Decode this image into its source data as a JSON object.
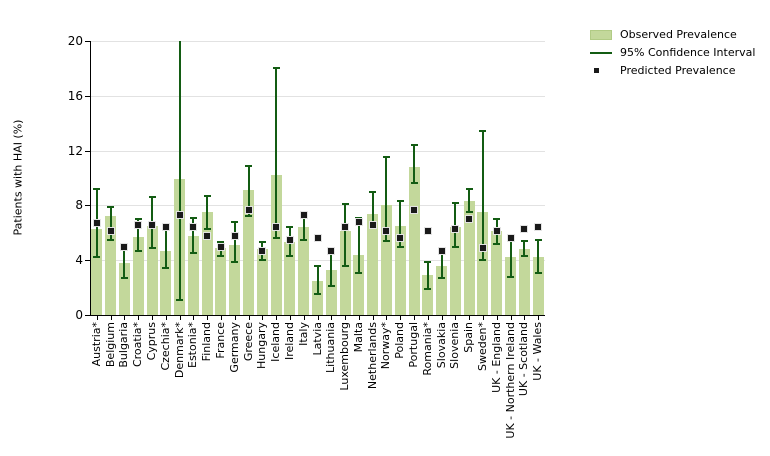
{
  "chart_data": {
    "type": "bar",
    "title": "",
    "xlabel": "",
    "ylabel": "Patients with HAI (%)",
    "ylim": [
      0,
      20
    ],
    "yticks": [
      0,
      4,
      8,
      12,
      16,
      20
    ],
    "grid": true,
    "legend_position": "top-right-outside",
    "categories": [
      "Austria*",
      "Belgium",
      "Bulgaria",
      "Croatia*",
      "Cyprus",
      "Czechia*",
      "Denmark*",
      "Estonia*",
      "Finland",
      "France",
      "Germany",
      "Greece",
      "Hungary",
      "Iceland",
      "Ireland",
      "Italy",
      "Latvia",
      "Lithuania",
      "Luxembourg",
      "Malta",
      "Netherlands",
      "Norway*",
      "Poland",
      "Portugal",
      "Romania*",
      "Slovakia",
      "Slovenia",
      "Spain",
      "Sweden*",
      "UK - England",
      "UK - Northern Ireland",
      "UK - Scotland",
      "UK - Wales"
    ],
    "series": [
      {
        "name": "Observed Prevalence",
        "type": "bar",
        "color": "#c3d89b",
        "values": [
          6.3,
          7.2,
          3.8,
          5.7,
          6.5,
          4.7,
          9.9,
          5.8,
          7.5,
          4.9,
          5.1,
          9.1,
          4.8,
          10.2,
          5.3,
          6.4,
          2.5,
          3.3,
          6.1,
          4.4,
          7.4,
          8.0,
          6.5,
          10.8,
          2.9,
          3.6,
          6.4,
          8.3,
          7.5,
          6.1,
          4.2,
          4.8,
          4.2
        ]
      },
      {
        "name": "95% Confidence Interval",
        "type": "error-interval",
        "color": "#135c13",
        "low": [
          4.2,
          5.5,
          2.7,
          4.7,
          4.9,
          3.4,
          1.1,
          4.5,
          6.3,
          4.3,
          3.9,
          7.2,
          4.0,
          5.6,
          4.3,
          5.5,
          1.5,
          2.1,
          3.6,
          3.1,
          6.7,
          5.4,
          5.0,
          9.6,
          1.9,
          2.7,
          5.0,
          7.5,
          4.0,
          5.2,
          2.8,
          4.3,
          3.1
        ],
        "high": [
          9.2,
          7.9,
          5.2,
          7.0,
          8.6,
          6.4,
          20.0,
          7.1,
          8.7,
          5.3,
          6.8,
          10.9,
          5.3,
          18.0,
          6.4,
          7.3,
          3.6,
          4.9,
          8.1,
          7.1,
          9.0,
          11.5,
          8.3,
          12.4,
          3.9,
          4.9,
          8.2,
          9.2,
          13.4,
          7.0,
          5.7,
          5.4,
          5.5
        ]
      },
      {
        "name": "Predicted Prevalence",
        "type": "point",
        "color": "#1a1a1a",
        "values": [
          6.7,
          6.1,
          5.0,
          6.6,
          6.6,
          6.4,
          7.3,
          6.4,
          5.8,
          5.0,
          5.8,
          7.7,
          4.7,
          6.4,
          5.5,
          7.3,
          5.6,
          4.7,
          6.4,
          6.8,
          6.6,
          6.1,
          5.6,
          7.7,
          6.1,
          4.7,
          6.3,
          7.0,
          4.9,
          6.1,
          5.6,
          6.3,
          6.4
        ]
      }
    ]
  },
  "colors": {
    "bar_fill": "#c3d89b",
    "ci_line": "#135c13",
    "predicted_point": "#1a1a1a",
    "gridline": "#e2e2e2",
    "axis": "#000000",
    "background": "#ffffff"
  }
}
